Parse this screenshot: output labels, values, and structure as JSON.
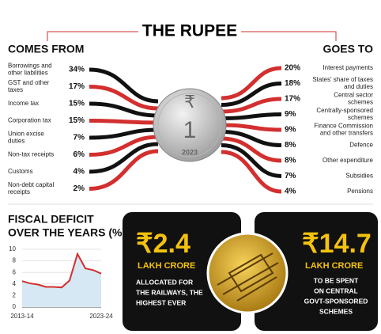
{
  "title": "THE RUPEE",
  "comes_from": {
    "heading": "COMES FROM",
    "rows": [
      {
        "label": [
          "Borrowings and",
          "other liabilities"
        ],
        "share": "34%"
      },
      {
        "label": [
          "GST and other",
          "taxes"
        ],
        "share": "17%"
      },
      {
        "label": [
          "Income tax"
        ],
        "share": "15%"
      },
      {
        "label": [
          "Corporation tax"
        ],
        "share": "15%"
      },
      {
        "label": [
          "Union excise",
          "duties"
        ],
        "share": "7%"
      },
      {
        "label": [
          "Non-tax receipts"
        ],
        "share": "6%"
      },
      {
        "label": [
          "Customs"
        ],
        "share": "4%"
      },
      {
        "label": [
          "Non-debt capital",
          "receipts"
        ],
        "share": "2%"
      }
    ]
  },
  "goes_to": {
    "heading": "GOES TO",
    "rows": [
      {
        "label": [
          "Interest payments"
        ],
        "share": "20%"
      },
      {
        "label": [
          "States' share of taxes",
          "and duties"
        ],
        "share": "18%"
      },
      {
        "label": [
          "Central sector",
          "schemes"
        ],
        "share": "17%"
      },
      {
        "label": [
          "Centrally-sponsored",
          "schemes"
        ],
        "share": "9%"
      },
      {
        "label": [
          "Finance Commission",
          "and other transfers"
        ],
        "share": "9%"
      },
      {
        "label": [
          "Defence"
        ],
        "share": "8%"
      },
      {
        "label": [
          "Other expenditure"
        ],
        "share": "8%"
      },
      {
        "label": [
          "Subsidies"
        ],
        "share": "7%"
      },
      {
        "label": [
          "Pensions"
        ],
        "share": "4%"
      }
    ]
  },
  "coin": {
    "symbol": "₹",
    "value": "1",
    "year": "2023"
  },
  "chart_data": {
    "type": "line",
    "title": "FISCAL DEFICIT",
    "subtitle": "OVER THE YEARS (%)",
    "categories": [
      "2013-14",
      null,
      null,
      null,
      null,
      null,
      null,
      null,
      null,
      null,
      "2023-24"
    ],
    "values": [
      4.5,
      4.1,
      3.9,
      3.5,
      3.5,
      3.4,
      4.6,
      9.2,
      6.7,
      6.4,
      5.8
    ],
    "color": "#d32f2f",
    "area_color": "#d6e8f3",
    "ylim": [
      0,
      10
    ],
    "yticks": [
      0,
      2,
      4,
      6,
      8,
      10
    ],
    "grid": true
  },
  "railways": {
    "amount": "₹2.4",
    "unit": "LAKH CRORE",
    "text": [
      "ALLOCATED FOR",
      "THE RAILWAYS, THE",
      "HIGHEST EVER"
    ]
  },
  "schemes": {
    "amount": "₹14.7",
    "unit": "LAKH CRORE",
    "text": [
      "TO BE SPENT",
      "ON CENTRAL",
      "GOVT-SPONSORED",
      "SCHEMES"
    ]
  }
}
